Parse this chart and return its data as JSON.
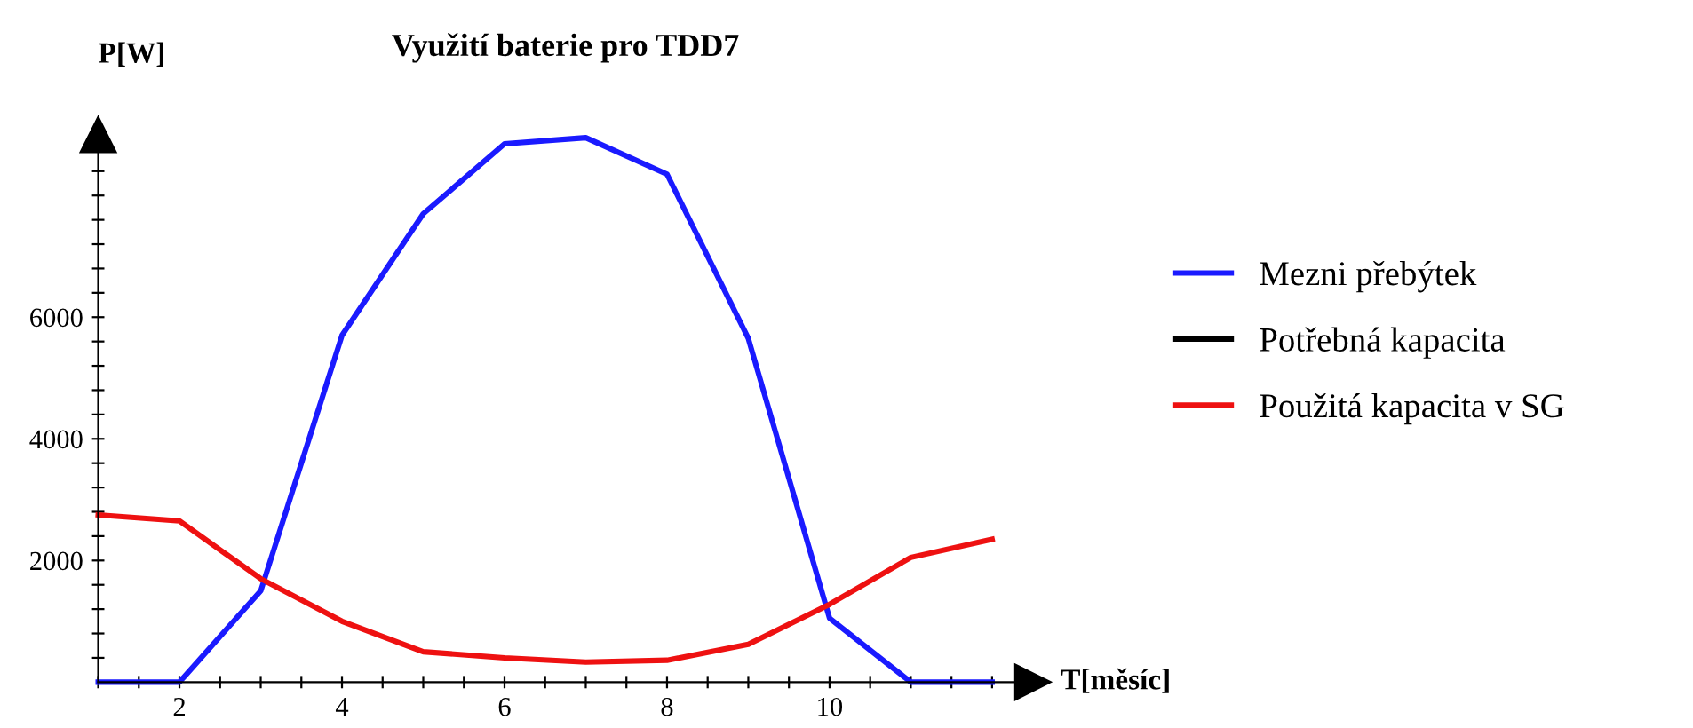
{
  "chart_data": {
    "type": "line",
    "title": "Využití baterie pro TDD7",
    "xlabel": "T[měsíc]",
    "ylabel": "P[W]",
    "x": [
      1,
      2,
      3,
      4,
      5,
      6,
      7,
      8,
      9,
      10,
      11,
      12
    ],
    "series": [
      {
        "name": "Mezni přebýtek",
        "color": "#1a1aff",
        "values": [
          0,
          0,
          1500,
          5700,
          7700,
          8850,
          8950,
          8350,
          5650,
          1050,
          0,
          0
        ]
      },
      {
        "name": "Potřebná kapacita",
        "color": "#000000",
        "values": [
          null,
          null,
          null,
          null,
          null,
          null,
          null,
          null,
          null,
          null,
          null,
          null
        ]
      },
      {
        "name": "Použitá kapacita v SG",
        "color": "#ee1111",
        "values": [
          2750,
          2650,
          1700,
          1000,
          500,
          400,
          330,
          360,
          620,
          1280,
          2050,
          2350
        ]
      }
    ],
    "xlim": [
      1,
      12.5
    ],
    "ylim": [
      0,
      9000
    ],
    "xticks": [
      {
        "value": 1,
        "label": null
      },
      {
        "value": 1.5,
        "label": null
      },
      2,
      {
        "value": 2.5,
        "label": null
      },
      {
        "value": 3,
        "label": null
      },
      {
        "value": 3.5,
        "label": null
      },
      4,
      {
        "value": 4.5,
        "label": null
      },
      {
        "value": 5,
        "label": null
      },
      {
        "value": 5.5,
        "label": null
      },
      6,
      {
        "value": 6.5,
        "label": null
      },
      {
        "value": 7,
        "label": null
      },
      {
        "value": 7.5,
        "label": null
      },
      8,
      {
        "value": 8.5,
        "label": null
      },
      {
        "value": 9,
        "label": null
      },
      {
        "value": 9.5,
        "label": null
      },
      10,
      {
        "value": 10.5,
        "label": null
      },
      {
        "value": 11,
        "label": null
      },
      {
        "value": 11.5,
        "label": null
      },
      {
        "value": 12,
        "label": null
      }
    ],
    "yticks": [
      {
        "value": 400,
        "label": null
      },
      {
        "value": 800,
        "label": null
      },
      {
        "value": 1200,
        "label": null
      },
      {
        "value": 1600,
        "label": null
      },
      2000,
      {
        "value": 2400,
        "label": null
      },
      {
        "value": 2800,
        "label": null
      },
      {
        "value": 3200,
        "label": null
      },
      {
        "value": 3600,
        "label": null
      },
      4000,
      {
        "value": 4400,
        "label": null
      },
      {
        "value": 4800,
        "label": null
      },
      {
        "value": 5200,
        "label": null
      },
      {
        "value": 5600,
        "label": null
      },
      6000,
      {
        "value": 6400,
        "label": null
      },
      {
        "value": 6800,
        "label": null
      },
      {
        "value": 7200,
        "label": null
      },
      {
        "value": 7600,
        "label": null
      },
      {
        "value": 8000,
        "label": null
      },
      {
        "value": 8400,
        "label": null
      },
      {
        "value": 8800,
        "label": null
      }
    ],
    "grid": false,
    "legend": "right",
    "marker": "none",
    "line_style": "solid"
  }
}
